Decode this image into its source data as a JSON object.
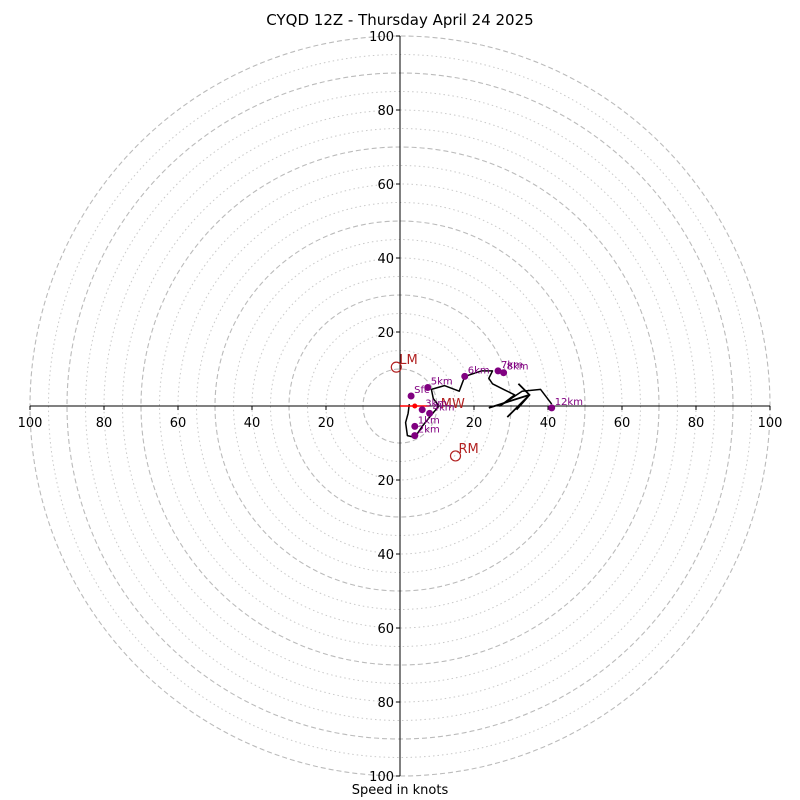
{
  "chart_data": {
    "type": "hodograph",
    "title": "CYQD 12Z - Thursday April 24 2025",
    "xlabel": "Speed in knots",
    "ylabel": "",
    "xlim": [
      -100,
      100
    ],
    "ylim": [
      -100,
      100
    ],
    "axis_ticks": [
      100,
      80,
      60,
      40,
      20
    ],
    "rings": {
      "major": [
        10,
        30,
        50,
        70,
        90,
        100
      ],
      "minor": [
        15,
        20,
        25,
        35,
        40,
        45,
        55,
        60,
        65,
        75,
        80,
        85,
        95
      ]
    },
    "colors": {
      "trace": "#000000",
      "height_markers": "#800080",
      "storm_motion": "#b22222",
      "mean_wind": "#ff0000",
      "ring": "#bbbbbb",
      "axis": "#000000"
    },
    "trace": [
      [
        2.5,
        0.5
      ],
      [
        2.2,
        -2.0
      ],
      [
        1.5,
        -4.5
      ],
      [
        2.0,
        -8.0
      ],
      [
        4.0,
        -8.5
      ],
      [
        6.0,
        -5.5
      ],
      [
        8.0,
        -3.0
      ],
      [
        10.5,
        0.0
      ],
      [
        9.0,
        2.0
      ],
      [
        8.5,
        4.5
      ],
      [
        12.0,
        5.5
      ],
      [
        16.0,
        4.0
      ],
      [
        17.5,
        8.0
      ],
      [
        22.0,
        9.5
      ],
      [
        25.0,
        9.5
      ],
      [
        24.0,
        7.5
      ],
      [
        25.0,
        6.0
      ],
      [
        28.0,
        4.5
      ],
      [
        31.0,
        3.0
      ],
      [
        27.0,
        0.0
      ],
      [
        33.0,
        4.0
      ],
      [
        38.0,
        4.5
      ],
      [
        41.0,
        0.5
      ]
    ],
    "height_markers": [
      {
        "label": "Sfc",
        "u": 3.0,
        "v": 2.7
      },
      {
        "label": "1km",
        "u": 4.0,
        "v": -5.5
      },
      {
        "label": "2km",
        "u": 4.0,
        "v": -8.0
      },
      {
        "label": "3km",
        "u": 6.0,
        "v": -1.0
      },
      {
        "label": "4km",
        "u": 8.0,
        "v": -2.0
      },
      {
        "label": "5km",
        "u": 7.5,
        "v": 5.0
      },
      {
        "label": "6km",
        "u": 17.5,
        "v": 8.0
      },
      {
        "label": "7km",
        "u": 26.5,
        "v": 9.5
      },
      {
        "label": "8km",
        "u": 28.0,
        "v": 9.0
      },
      {
        "label": "12km",
        "u": 41.0,
        "v": -0.5
      }
    ],
    "storm_motion": [
      {
        "label": "LM",
        "u": -1.0,
        "v": 10.5
      },
      {
        "label": "RM",
        "u": 15.0,
        "v": -13.5
      }
    ],
    "mean_wind": {
      "label": "MW",
      "u": 4.0,
      "v": 0.0
    },
    "wind_barb": {
      "u": 35.0,
      "v": 3.0
    }
  }
}
